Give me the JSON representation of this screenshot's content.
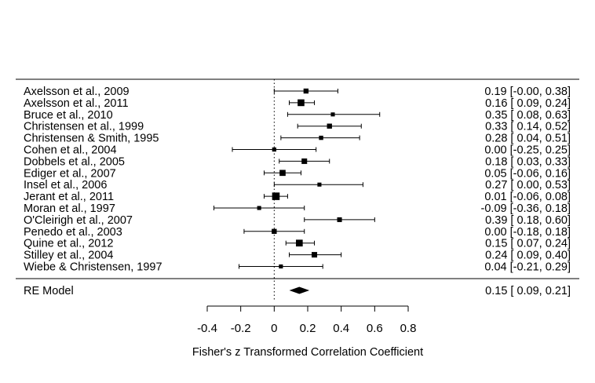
{
  "chart_data": {
    "type": "forest",
    "xlabel": "Fisher's z Transformed Correlation Coefficient",
    "xlim": [
      -0.4,
      0.8
    ],
    "xticks": [
      "-0.4",
      "-0.2",
      "0",
      "0.2",
      "0.4",
      "0.6",
      "0.8"
    ],
    "reference_line": 0,
    "studies": [
      {
        "label": "Axelsson et al., 2009",
        "estimate": 0.19,
        "lower": -0.0,
        "upper": 0.38,
        "weight": 0.9,
        "ci_text": "0.19 [-0.00, 0.38]"
      },
      {
        "label": "Axelsson et al., 2011",
        "estimate": 0.16,
        "lower": 0.09,
        "upper": 0.24,
        "weight": 1.6,
        "ci_text": "0.16 [ 0.09, 0.24]"
      },
      {
        "label": "Bruce et al., 2010",
        "estimate": 0.35,
        "lower": 0.08,
        "upper": 0.63,
        "weight": 0.5,
        "ci_text": "0.35 [ 0.08, 0.63]"
      },
      {
        "label": "Christensen et al., 1999",
        "estimate": 0.33,
        "lower": 0.14,
        "upper": 0.52,
        "weight": 0.9,
        "ci_text": "0.33 [ 0.14, 0.52]"
      },
      {
        "label": "Christensen & Smith, 1995",
        "estimate": 0.28,
        "lower": 0.04,
        "upper": 0.51,
        "weight": 0.6,
        "ci_text": "0.28 [ 0.04, 0.51]"
      },
      {
        "label": "Cohen et al., 2004",
        "estimate": 0.0,
        "lower": -0.25,
        "upper": 0.25,
        "weight": 0.55,
        "ci_text": "0.00 [-0.25, 0.25]"
      },
      {
        "label": "Dobbels et al., 2005",
        "estimate": 0.18,
        "lower": 0.03,
        "upper": 0.33,
        "weight": 1.1,
        "ci_text": "0.18 [ 0.03, 0.33]"
      },
      {
        "label": "Ediger et al., 2007",
        "estimate": 0.05,
        "lower": -0.06,
        "upper": 0.16,
        "weight": 1.3,
        "ci_text": "0.05 [-0.06, 0.16]"
      },
      {
        "label": "Insel et al., 2006",
        "estimate": 0.27,
        "lower": 0.0,
        "upper": 0.53,
        "weight": 0.5,
        "ci_text": "0.27 [ 0.00, 0.53]"
      },
      {
        "label": "Jerant et al., 2011",
        "estimate": 0.01,
        "lower": -0.06,
        "upper": 0.08,
        "weight": 1.9,
        "ci_text": "0.01 [-0.06, 0.08]"
      },
      {
        "label": "Moran et al., 1997",
        "estimate": -0.09,
        "lower": -0.36,
        "upper": 0.18,
        "weight": 0.5,
        "ci_text": "-0.09 [-0.36, 0.18]"
      },
      {
        "label": "O'Cleirigh et al., 2007",
        "estimate": 0.39,
        "lower": 0.18,
        "upper": 0.6,
        "weight": 0.8,
        "ci_text": "0.39 [ 0.18, 0.60]"
      },
      {
        "label": "Penedo et al., 2003",
        "estimate": 0.0,
        "lower": -0.18,
        "upper": 0.18,
        "weight": 0.9,
        "ci_text": "0.00 [-0.18, 0.18]"
      },
      {
        "label": "Quine et al., 2012",
        "estimate": 0.15,
        "lower": 0.07,
        "upper": 0.24,
        "weight": 1.6,
        "ci_text": "0.15 [ 0.07, 0.24]"
      },
      {
        "label": "Stilley et al., 2004",
        "estimate": 0.24,
        "lower": 0.09,
        "upper": 0.4,
        "weight": 1.1,
        "ci_text": "0.24 [ 0.09, 0.40]"
      },
      {
        "label": "Wiebe & Christensen, 1997",
        "estimate": 0.04,
        "lower": -0.21,
        "upper": 0.29,
        "weight": 0.5,
        "ci_text": "0.04 [-0.21, 0.29]"
      }
    ],
    "summary": {
      "label": "RE Model",
      "estimate": 0.15,
      "lower": 0.09,
      "upper": 0.21,
      "ci_text": "0.15 [ 0.09, 0.21]"
    }
  }
}
